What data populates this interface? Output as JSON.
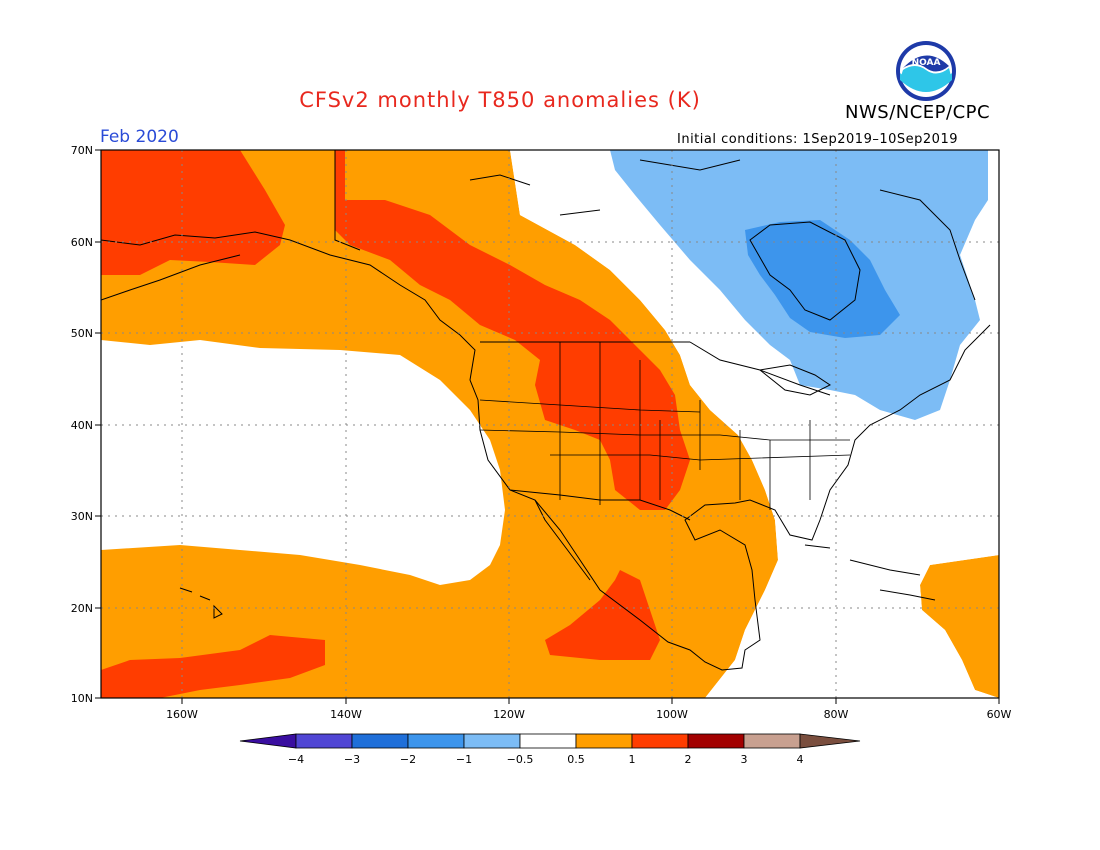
{
  "header": {
    "title": "CFSv2 monthly T850 anomalies (K)",
    "agency": "NWS/NCEP/CPC",
    "logo_text": "NOAA",
    "period": "Feb 2020",
    "initial_conditions": "Initial conditions: 1Sep2019–10Sep2019"
  },
  "map": {
    "lat_labels": [
      "70N",
      "60N",
      "50N",
      "40N",
      "30N",
      "20N",
      "10N"
    ],
    "lon_labels": [
      "160W",
      "140W",
      "120W",
      "100W",
      "80W",
      "60W"
    ]
  },
  "colorbar": {
    "labels": [
      "−4",
      "−3",
      "−2",
      "−1",
      "−0.5",
      "0.5",
      "1",
      "2",
      "3",
      "4"
    ],
    "colors": [
      "#3a0ea0",
      "#5046d4",
      "#1f6fd9",
      "#3d95ec",
      "#7cbcf5",
      "#ffffff",
      "#ff9e00",
      "#ff3d00",
      "#a20000",
      "#c8a090",
      "#7a4e3e"
    ]
  },
  "colors": {
    "title": "#e8281e",
    "period": "#2a4bd7",
    "warm_light": "#ff9e00",
    "warm_mid": "#ff3d00",
    "cool_light": "#7cbcf5",
    "cool_mid": "#3d95ec"
  }
}
